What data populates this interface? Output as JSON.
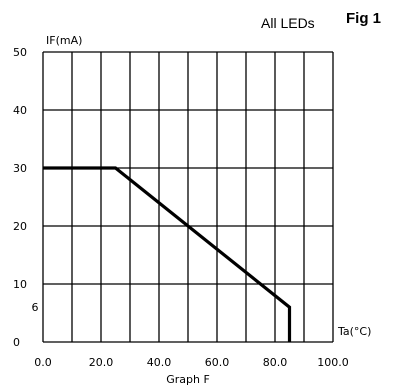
{
  "header": {
    "fig_label": "Fig 1",
    "subtitle": "All LEDs"
  },
  "chart_data": {
    "type": "line",
    "title": "All LEDs",
    "caption": "Graph F",
    "ylabel": "IF(mA)",
    "xlabel": "Ta(°C)",
    "xlim": [
      0,
      100
    ],
    "ylim": [
      0,
      50
    ],
    "x_ticks": [
      0,
      20,
      40,
      60,
      80,
      100
    ],
    "x_tick_labels": [
      "0.0",
      "20.0",
      "40.0",
      "60.0",
      "80.0",
      "100.0"
    ],
    "x_gridlines": [
      0,
      10,
      20,
      30,
      40,
      50,
      60,
      70,
      80,
      90,
      100
    ],
    "y_ticks": [
      0,
      10,
      20,
      30,
      40,
      50
    ],
    "y_tick_labels": [
      "0",
      "10",
      "20",
      "30",
      "40",
      "50"
    ],
    "y_gridlines": [
      0,
      10,
      20,
      30,
      40,
      50
    ],
    "extra_y_label": {
      "value": 6,
      "text": "6"
    },
    "grid": true,
    "series": [
      {
        "x": [
          0,
          25,
          85,
          85
        ],
        "y": [
          30,
          30,
          6,
          0
        ]
      }
    ],
    "colors": {
      "grid": "#000000",
      "line": "#000000"
    }
  }
}
